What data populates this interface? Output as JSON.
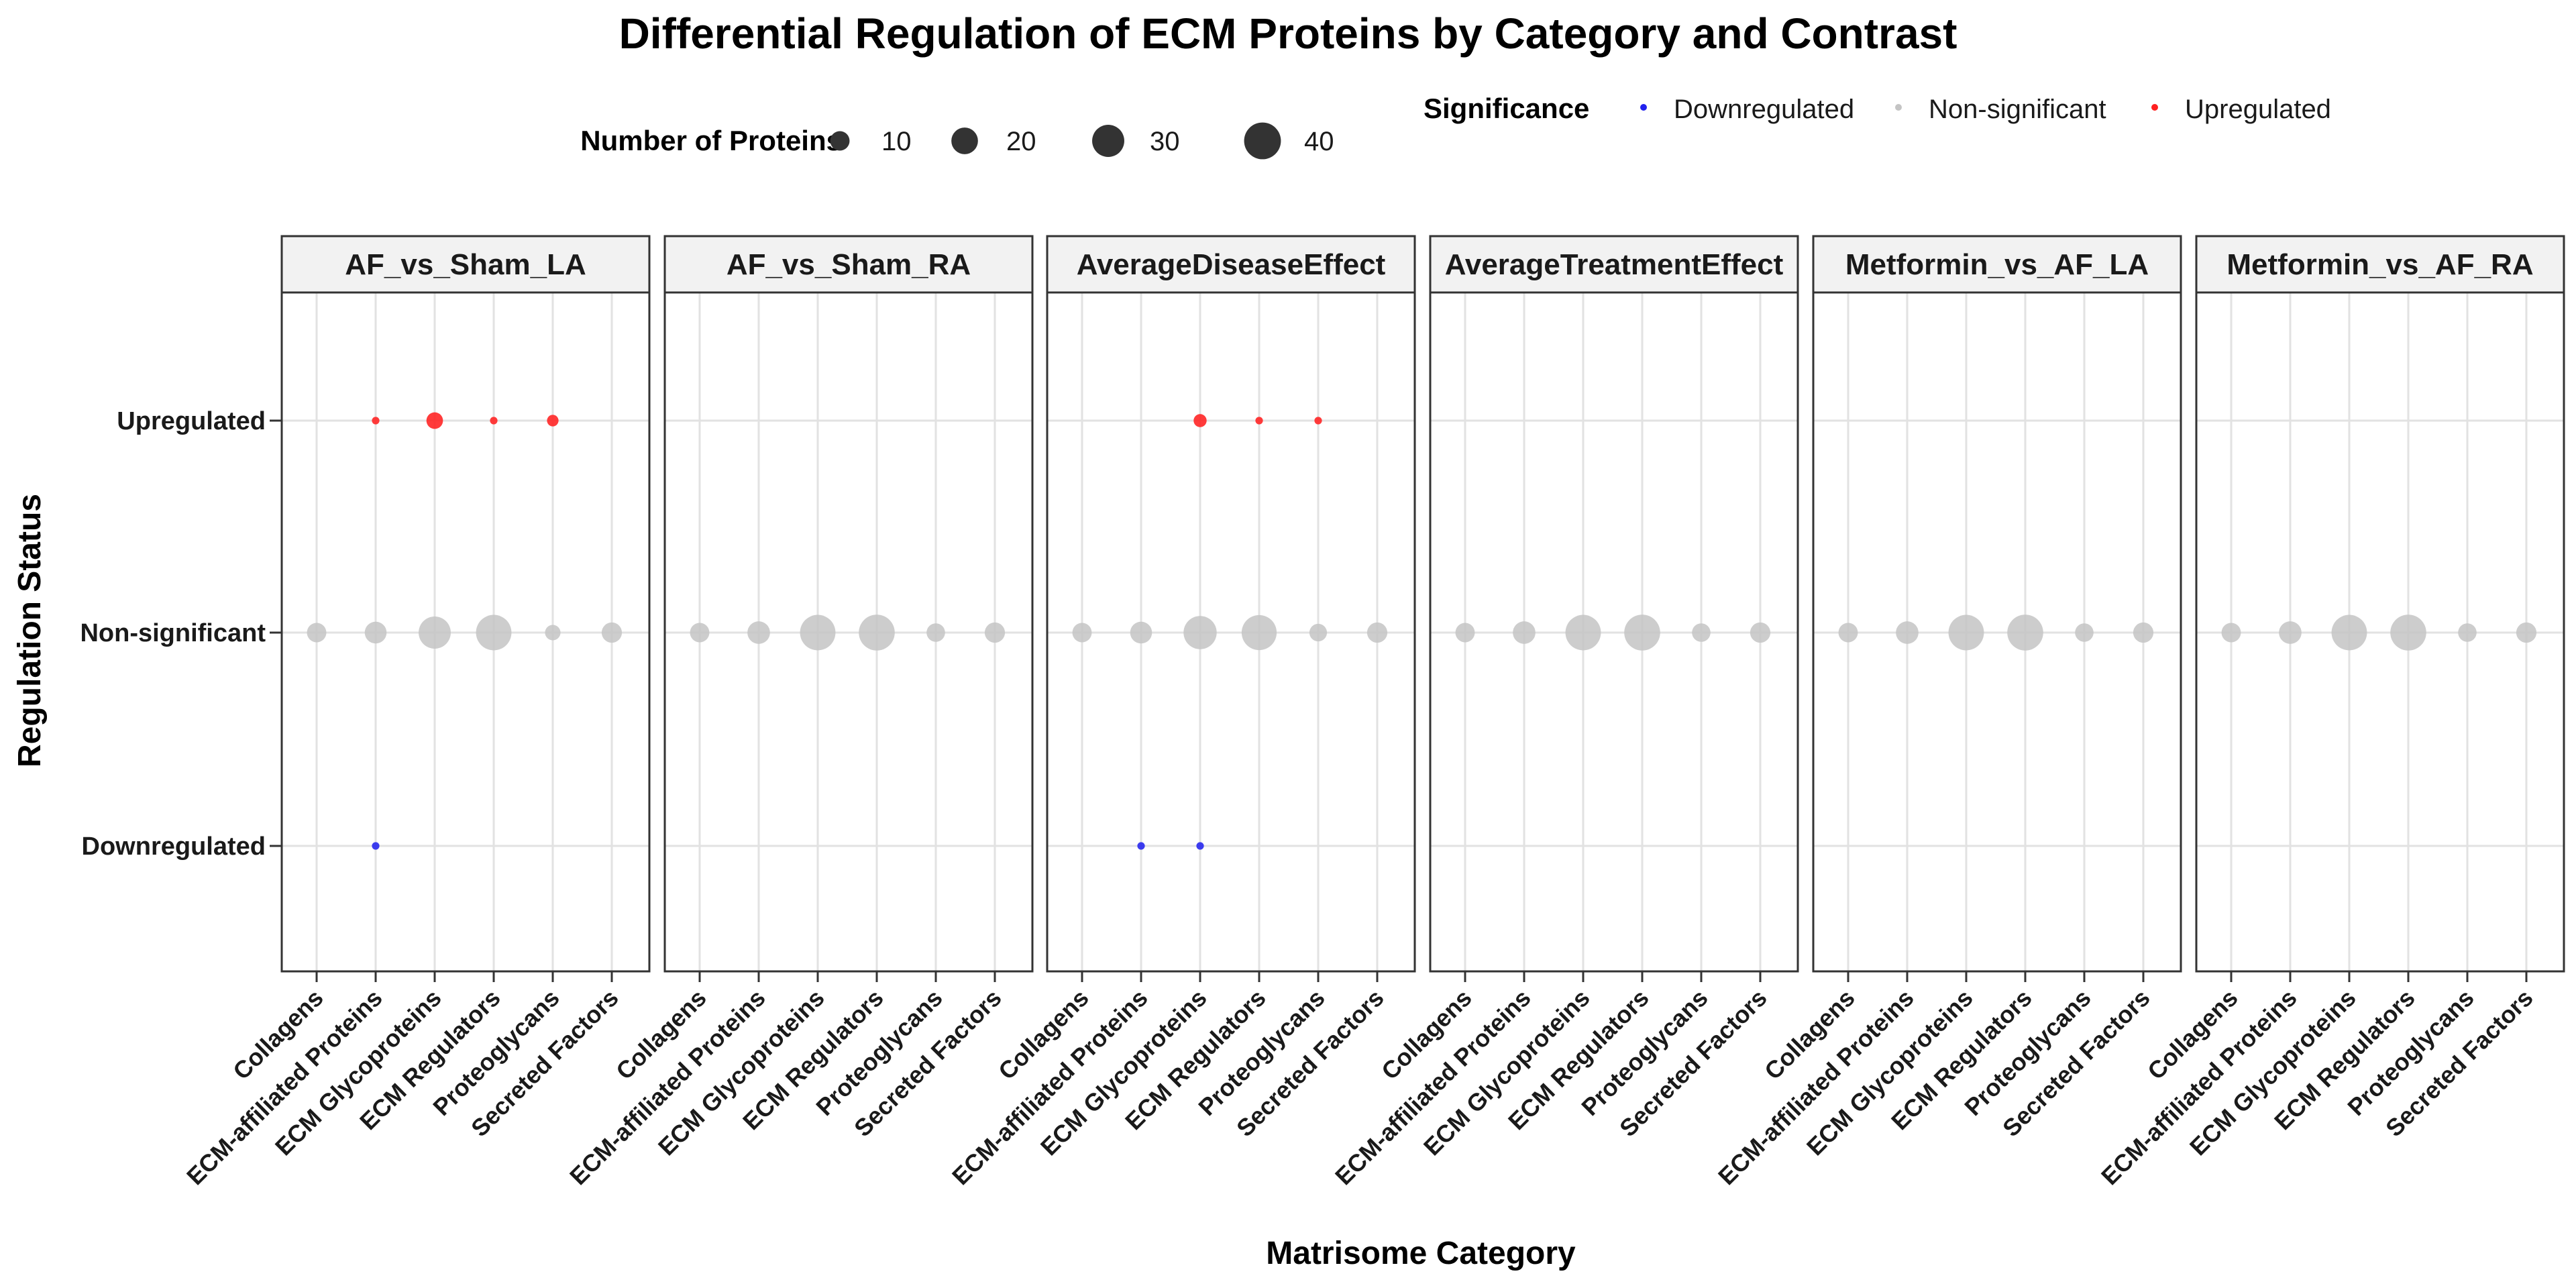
{
  "chart_data": {
    "type": "scatter",
    "title": "Differential Regulation of ECM Proteins by Category and Contrast",
    "xlabel": "Matrisome Category",
    "ylabel": "Regulation Status",
    "categories": [
      "Collagens",
      "ECM-affiliated Proteins",
      "ECM Glycoproteins",
      "ECM Regulators",
      "Proteoglycans",
      "Secreted Factors"
    ],
    "y_levels": [
      "Downregulated",
      "Non-significant",
      "Upregulated"
    ],
    "facets": [
      "AF_vs_Sham_LA",
      "AF_vs_Sham_RA",
      "AverageDiseaseEffect",
      "AverageTreatmentEffect",
      "Metformin_vs_AF_LA",
      "Metformin_vs_AF_RA"
    ],
    "size_legend": {
      "title": "Number of Proteins",
      "values": [
        10,
        20,
        30,
        40
      ]
    },
    "color_legend": {
      "title": "Significance",
      "entries": [
        {
          "label": "Downregulated",
          "color": "#2222ee"
        },
        {
          "label": "Non-significant",
          "color": "#c4c4c4"
        },
        {
          "label": "Upregulated",
          "color": "#ff2020"
        }
      ]
    },
    "grid": true,
    "legend_position": "top",
    "points": [
      {
        "facet": "AF_vs_Sham_LA",
        "category": "Collagens",
        "status": "Non-significant",
        "count": 10
      },
      {
        "facet": "AF_vs_Sham_LA",
        "category": "ECM-affiliated Proteins",
        "status": "Non-significant",
        "count": 13
      },
      {
        "facet": "AF_vs_Sham_LA",
        "category": "ECM Glycoproteins",
        "status": "Non-significant",
        "count": 30
      },
      {
        "facet": "AF_vs_Sham_LA",
        "category": "ECM Regulators",
        "status": "Non-significant",
        "count": 37
      },
      {
        "facet": "AF_vs_Sham_LA",
        "category": "Proteoglycans",
        "status": "Non-significant",
        "count": 6
      },
      {
        "facet": "AF_vs_Sham_LA",
        "category": "Secreted Factors",
        "status": "Non-significant",
        "count": 11
      },
      {
        "facet": "AF_vs_Sham_LA",
        "category": "ECM-affiliated Proteins",
        "status": "Upregulated",
        "count": 1
      },
      {
        "facet": "AF_vs_Sham_LA",
        "category": "ECM Glycoproteins",
        "status": "Upregulated",
        "count": 7
      },
      {
        "facet": "AF_vs_Sham_LA",
        "category": "ECM Regulators",
        "status": "Upregulated",
        "count": 1
      },
      {
        "facet": "AF_vs_Sham_LA",
        "category": "Proteoglycans",
        "status": "Upregulated",
        "count": 3
      },
      {
        "facet": "AF_vs_Sham_LA",
        "category": "ECM-affiliated Proteins",
        "status": "Downregulated",
        "count": 1
      },
      {
        "facet": "AF_vs_Sham_RA",
        "category": "Collagens",
        "status": "Non-significant",
        "count": 10
      },
      {
        "facet": "AF_vs_Sham_RA",
        "category": "ECM-affiliated Proteins",
        "status": "Non-significant",
        "count": 14
      },
      {
        "facet": "AF_vs_Sham_RA",
        "category": "ECM Glycoproteins",
        "status": "Non-significant",
        "count": 37
      },
      {
        "facet": "AF_vs_Sham_RA",
        "category": "ECM Regulators",
        "status": "Non-significant",
        "count": 38
      },
      {
        "facet": "AF_vs_Sham_RA",
        "category": "Proteoglycans",
        "status": "Non-significant",
        "count": 9
      },
      {
        "facet": "AF_vs_Sham_RA",
        "category": "Secreted Factors",
        "status": "Non-significant",
        "count": 11
      },
      {
        "facet": "AverageDiseaseEffect",
        "category": "Collagens",
        "status": "Non-significant",
        "count": 10
      },
      {
        "facet": "AverageDiseaseEffect",
        "category": "ECM-affiliated Proteins",
        "status": "Non-significant",
        "count": 13
      },
      {
        "facet": "AverageDiseaseEffect",
        "category": "ECM Glycoproteins",
        "status": "Non-significant",
        "count": 32
      },
      {
        "facet": "AverageDiseaseEffect",
        "category": "ECM Regulators",
        "status": "Non-significant",
        "count": 36
      },
      {
        "facet": "AverageDiseaseEffect",
        "category": "Proteoglycans",
        "status": "Non-significant",
        "count": 8
      },
      {
        "facet": "AverageDiseaseEffect",
        "category": "Secreted Factors",
        "status": "Non-significant",
        "count": 11
      },
      {
        "facet": "AverageDiseaseEffect",
        "category": "ECM Glycoproteins",
        "status": "Upregulated",
        "count": 4
      },
      {
        "facet": "AverageDiseaseEffect",
        "category": "ECM Regulators",
        "status": "Upregulated",
        "count": 1
      },
      {
        "facet": "AverageDiseaseEffect",
        "category": "Proteoglycans",
        "status": "Upregulated",
        "count": 1
      },
      {
        "facet": "AverageDiseaseEffect",
        "category": "ECM-affiliated Proteins",
        "status": "Downregulated",
        "count": 1
      },
      {
        "facet": "AverageDiseaseEffect",
        "category": "ECM Glycoproteins",
        "status": "Downregulated",
        "count": 1
      },
      {
        "facet": "AverageTreatmentEffect",
        "category": "Collagens",
        "status": "Non-significant",
        "count": 10
      },
      {
        "facet": "AverageTreatmentEffect",
        "category": "ECM-affiliated Proteins",
        "status": "Non-significant",
        "count": 14
      },
      {
        "facet": "AverageTreatmentEffect",
        "category": "ECM Glycoproteins",
        "status": "Non-significant",
        "count": 37
      },
      {
        "facet": "AverageTreatmentEffect",
        "category": "ECM Regulators",
        "status": "Non-significant",
        "count": 38
      },
      {
        "facet": "AverageTreatmentEffect",
        "category": "Proteoglycans",
        "status": "Non-significant",
        "count": 9
      },
      {
        "facet": "AverageTreatmentEffect",
        "category": "Secreted Factors",
        "status": "Non-significant",
        "count": 11
      },
      {
        "facet": "Metformin_vs_AF_LA",
        "category": "Collagens",
        "status": "Non-significant",
        "count": 10
      },
      {
        "facet": "Metformin_vs_AF_LA",
        "category": "ECM-affiliated Proteins",
        "status": "Non-significant",
        "count": 14
      },
      {
        "facet": "Metformin_vs_AF_LA",
        "category": "ECM Glycoproteins",
        "status": "Non-significant",
        "count": 37
      },
      {
        "facet": "Metformin_vs_AF_LA",
        "category": "ECM Regulators",
        "status": "Non-significant",
        "count": 38
      },
      {
        "facet": "Metformin_vs_AF_LA",
        "category": "Proteoglycans",
        "status": "Non-significant",
        "count": 9
      },
      {
        "facet": "Metformin_vs_AF_LA",
        "category": "Secreted Factors",
        "status": "Non-significant",
        "count": 11
      },
      {
        "facet": "Metformin_vs_AF_RA",
        "category": "Collagens",
        "status": "Non-significant",
        "count": 10
      },
      {
        "facet": "Metformin_vs_AF_RA",
        "category": "ECM-affiliated Proteins",
        "status": "Non-significant",
        "count": 14
      },
      {
        "facet": "Metformin_vs_AF_RA",
        "category": "ECM Glycoproteins",
        "status": "Non-significant",
        "count": 37
      },
      {
        "facet": "Metformin_vs_AF_RA",
        "category": "ECM Regulators",
        "status": "Non-significant",
        "count": 38
      },
      {
        "facet": "Metformin_vs_AF_RA",
        "category": "Proteoglycans",
        "status": "Non-significant",
        "count": 9
      },
      {
        "facet": "Metformin_vs_AF_RA",
        "category": "Secreted Factors",
        "status": "Non-significant",
        "count": 11
      }
    ]
  }
}
